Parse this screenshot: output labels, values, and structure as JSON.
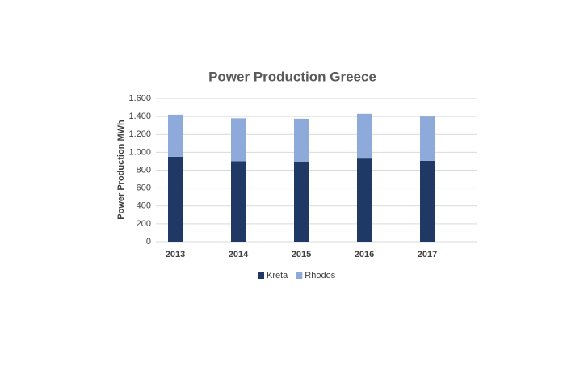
{
  "chart_data": {
    "type": "stacked-bar",
    "title": "Power Production Greece",
    "y_label": "Power Production  MWh",
    "categories": [
      "2013",
      "2014",
      "2015",
      "2016",
      "2017"
    ],
    "series": [
      {
        "name": "Kreta",
        "color": "#1f3864",
        "values": [
          950,
          900,
          890,
          930,
          905
        ]
      },
      {
        "name": "Rhodos",
        "color": "#8eaadb",
        "values": [
          470,
          480,
          485,
          500,
          495
        ]
      }
    ],
    "ylim": [
      0,
      1600
    ],
    "yticks": [
      0,
      200,
      400,
      600,
      800,
      {
        "value": 1000,
        "label": "1.000"
      },
      {
        "value": 1200,
        "label": "1.200"
      },
      {
        "value": 1400,
        "label": "1.400"
      },
      {
        "value": 1600,
        "label": "1.600"
      }
    ],
    "grid": true,
    "legend": "bottom"
  }
}
